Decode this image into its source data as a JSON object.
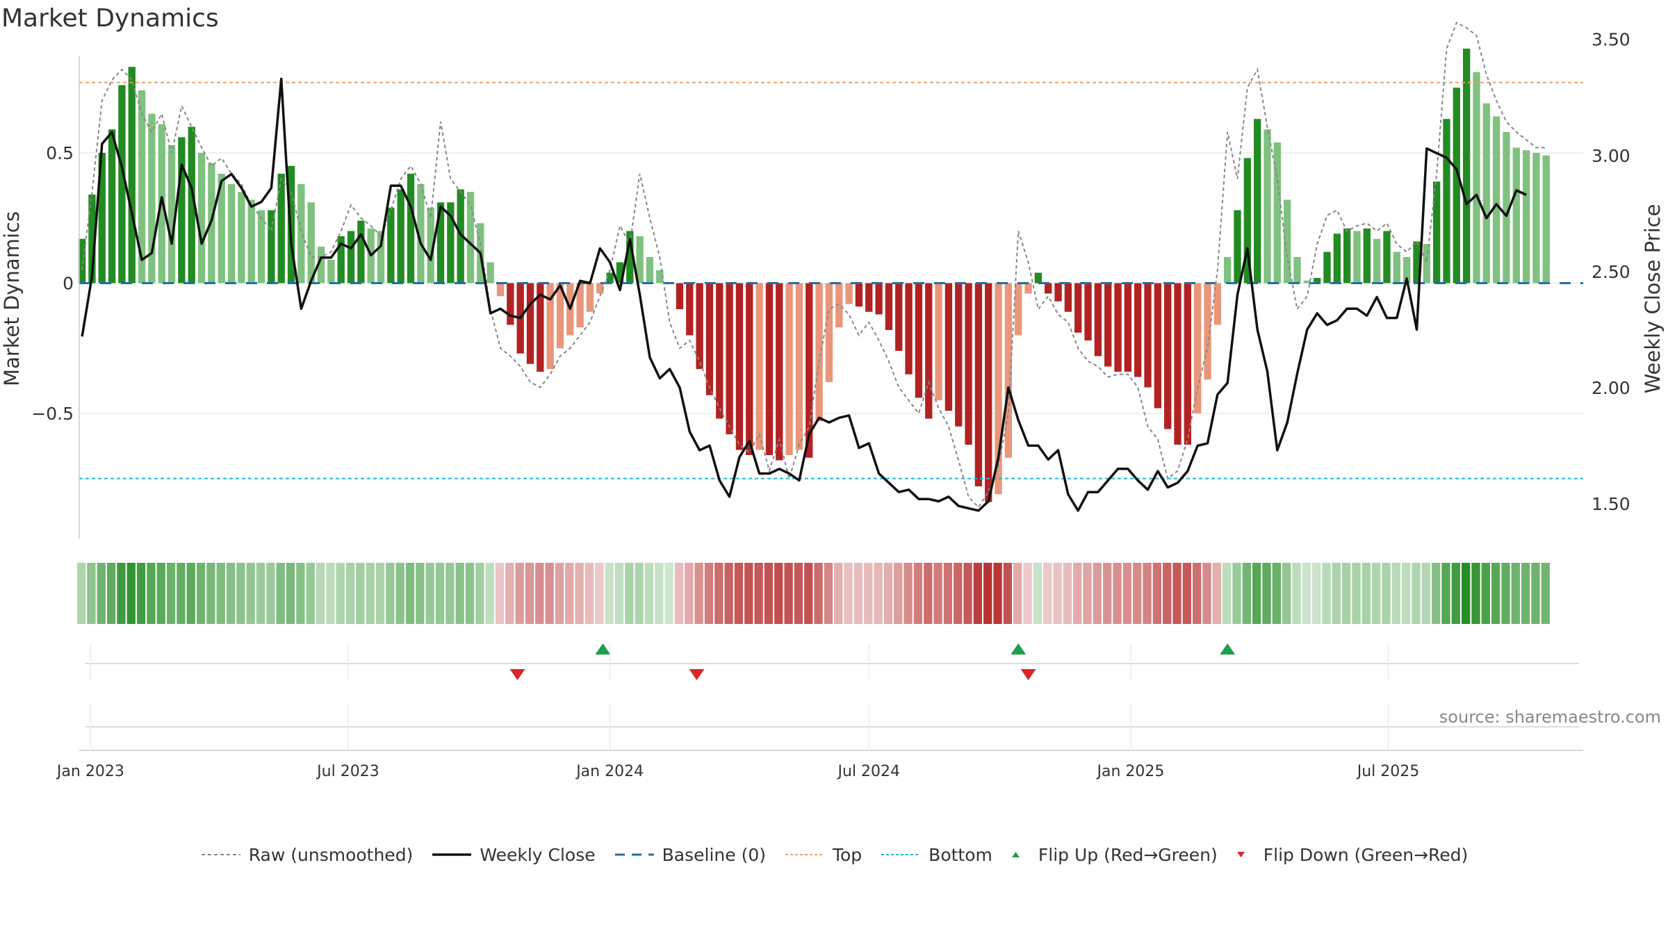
{
  "title": "Market Dynamics",
  "source": "source: sharemaestro.com",
  "chart_data": {
    "type": "bar",
    "title": "Market Dynamics",
    "ylabel_left": "Market Dynamics",
    "ylabel_right": "Weekly Close Price",
    "left_ticks": [
      {
        "v": 0.5,
        "label": "0.5"
      },
      {
        "v": 0,
        "label": "0"
      },
      {
        "v": -0.5,
        "label": "−0.5"
      }
    ],
    "right_ticks": [
      {
        "v": 3.5,
        "label": "3.50"
      },
      {
        "v": 3.0,
        "label": "3.00"
      },
      {
        "v": 2.5,
        "label": "2.50"
      },
      {
        "v": 2.0,
        "label": "2.00"
      },
      {
        "v": 1.5,
        "label": "1.50"
      }
    ],
    "x_ticks": [
      {
        "date": "2023-01-01",
        "label": "Jan 2023"
      },
      {
        "date": "2023-07-01",
        "label": "Jul 2023"
      },
      {
        "date": "2024-01-01",
        "label": "Jan 2024"
      },
      {
        "date": "2024-07-01",
        "label": "Jul 2024"
      },
      {
        "date": "2025-01-01",
        "label": "Jan 2025"
      },
      {
        "date": "2025-07-01",
        "label": "Jul 2025"
      }
    ],
    "x_range": [
      "2022-12-24",
      "2025-11-15"
    ],
    "left_range": [
      -0.98,
      0.98
    ],
    "right_range": [
      1.35,
      3.55
    ],
    "top_level": 0.77,
    "bottom_level": -0.75,
    "baseline": 0,
    "first_week": "2022-12-26",
    "week_days": 7,
    "dynamics": [
      0.17,
      0.34,
      0.5,
      0.59,
      0.76,
      0.83,
      0.74,
      0.65,
      0.61,
      0.53,
      0.56,
      0.6,
      0.5,
      0.46,
      0.42,
      0.38,
      0.35,
      0.32,
      0.28,
      0.28,
      0.42,
      0.45,
      0.38,
      0.31,
      0.14,
      0.09,
      0.18,
      0.2,
      0.24,
      0.21,
      0.2,
      0.29,
      0.36,
      0.42,
      0.38,
      0.29,
      0.31,
      0.31,
      0.36,
      0.35,
      0.23,
      0.08,
      -0.05,
      -0.16,
      -0.27,
      -0.31,
      -0.34,
      -0.33,
      -0.25,
      -0.2,
      -0.17,
      -0.11,
      -0.04,
      0.04,
      0.08,
      0.2,
      0.18,
      0.1,
      0.05,
      0.0,
      -0.1,
      -0.2,
      -0.33,
      -0.43,
      -0.52,
      -0.58,
      -0.64,
      -0.66,
      -0.64,
      -0.66,
      -0.68,
      -0.66,
      -0.64,
      -0.67,
      -0.53,
      -0.38,
      -0.17,
      -0.08,
      -0.09,
      -0.11,
      -0.12,
      -0.18,
      -0.26,
      -0.35,
      -0.44,
      -0.52,
      -0.45,
      -0.49,
      -0.55,
      -0.62,
      -0.78,
      -0.84,
      -0.81,
      -0.67,
      -0.2,
      -0.04,
      0.04,
      -0.04,
      -0.07,
      -0.11,
      -0.19,
      -0.22,
      -0.28,
      -0.32,
      -0.34,
      -0.34,
      -0.36,
      -0.4,
      -0.48,
      -0.56,
      -0.62,
      -0.62,
      -0.5,
      -0.37,
      -0.16,
      0.1,
      0.28,
      0.48,
      0.63,
      0.59,
      0.54,
      0.32,
      0.1,
      0.01,
      0.02,
      0.12,
      0.19,
      0.21,
      0.2,
      0.21,
      0.17,
      0.2,
      0.12,
      0.1,
      0.16,
      0.15,
      0.39,
      0.63,
      0.75,
      0.9,
      0.81,
      0.69,
      0.64,
      0.58,
      0.52,
      0.51,
      0.5,
      0.49
    ],
    "raw": [
      0.05,
      0.35,
      0.7,
      0.78,
      0.82,
      0.78,
      0.65,
      0.58,
      0.65,
      0.5,
      0.68,
      0.6,
      0.52,
      0.45,
      0.48,
      0.42,
      0.38,
      0.3,
      0.25,
      0.2,
      0.4,
      0.35,
      0.2,
      0.1,
      0.1,
      0.12,
      0.2,
      0.3,
      0.25,
      0.22,
      0.18,
      0.28,
      0.4,
      0.45,
      0.38,
      0.25,
      0.62,
      0.4,
      0.35,
      0.3,
      0.15,
      -0.1,
      -0.25,
      -0.28,
      -0.32,
      -0.38,
      -0.4,
      -0.35,
      -0.28,
      -0.25,
      -0.2,
      -0.15,
      -0.05,
      0.05,
      0.22,
      0.15,
      0.42,
      0.25,
      0.1,
      -0.15,
      -0.25,
      -0.22,
      -0.3,
      -0.4,
      -0.48,
      -0.55,
      -0.62,
      -0.65,
      -0.58,
      -0.72,
      -0.6,
      -0.75,
      -0.62,
      -0.55,
      -0.3,
      -0.1,
      -0.08,
      -0.12,
      -0.2,
      -0.15,
      -0.22,
      -0.3,
      -0.4,
      -0.45,
      -0.5,
      -0.38,
      -0.48,
      -0.55,
      -0.68,
      -0.82,
      -0.86,
      -0.8,
      -0.7,
      -0.5,
      0.2,
      0.08,
      -0.1,
      -0.05,
      -0.12,
      -0.15,
      -0.25,
      -0.3,
      -0.32,
      -0.36,
      -0.35,
      -0.35,
      -0.4,
      -0.55,
      -0.6,
      -0.75,
      -0.72,
      -0.6,
      -0.4,
      -0.25,
      0.05,
      0.58,
      0.4,
      0.75,
      0.82,
      0.6,
      0.4,
      0.1,
      -0.1,
      -0.05,
      0.15,
      0.26,
      0.28,
      0.2,
      0.22,
      0.23,
      0.2,
      0.23,
      0.15,
      0.12,
      0.16,
      0.08,
      0.42,
      0.9,
      1.0,
      0.98,
      0.95,
      0.8,
      0.7,
      0.62,
      0.58,
      0.55,
      0.52,
      0.52
    ],
    "weekly_close": [
      2.22,
      2.48,
      3.05,
      3.1,
      2.95,
      2.75,
      2.55,
      2.58,
      2.82,
      2.62,
      2.96,
      2.86,
      2.62,
      2.72,
      2.89,
      2.92,
      2.86,
      2.78,
      2.8,
      2.86,
      3.33,
      2.62,
      2.34,
      2.46,
      2.56,
      2.56,
      2.62,
      2.6,
      2.66,
      2.57,
      2.61,
      2.87,
      2.87,
      2.78,
      2.62,
      2.55,
      2.78,
      2.74,
      2.66,
      2.62,
      2.58,
      2.32,
      2.34,
      2.31,
      2.3,
      2.36,
      2.4,
      2.38,
      2.44,
      2.34,
      2.46,
      2.45,
      2.6,
      2.54,
      2.42,
      2.64,
      2.4,
      2.13,
      2.04,
      2.08,
      2.0,
      1.81,
      1.73,
      1.75,
      1.6,
      1.53,
      1.7,
      1.77,
      1.63,
      1.63,
      1.65,
      1.63,
      1.6,
      1.8,
      1.87,
      1.85,
      1.87,
      1.88,
      1.74,
      1.76,
      1.63,
      1.59,
      1.55,
      1.56,
      1.52,
      1.52,
      1.51,
      1.53,
      1.49,
      1.48,
      1.47,
      1.51,
      1.7,
      2.0,
      1.86,
      1.75,
      1.75,
      1.69,
      1.73,
      1.54,
      1.47,
      1.55,
      1.55,
      1.6,
      1.65,
      1.65,
      1.6,
      1.56,
      1.64,
      1.57,
      1.59,
      1.64,
      1.75,
      1.76,
      1.97,
      2.02,
      2.4,
      2.6,
      2.25,
      2.07,
      1.73,
      1.85,
      2.06,
      2.25,
      2.32,
      2.27,
      2.29,
      2.34,
      2.34,
      2.31,
      2.39,
      2.3,
      2.3,
      2.47,
      2.25,
      3.03,
      3.01,
      2.99,
      2.94,
      2.79,
      2.83,
      2.73,
      2.79,
      2.74,
      2.85,
      2.83
    ],
    "flips_up": [
      "2023-12-27",
      "2024-10-14",
      "2025-03-10"
    ],
    "flips_down": [
      "2023-10-28",
      "2024-03-02",
      "2024-10-21"
    ],
    "series": [
      {
        "name": "Raw (unsmoothed)"
      },
      {
        "name": "Weekly Close"
      },
      {
        "name": "Baseline (0)"
      },
      {
        "name": "Top"
      },
      {
        "name": "Bottom"
      },
      {
        "name": "Flip Up (Red→Green)"
      },
      {
        "name": "Flip Down (Green→Red)"
      }
    ],
    "legend_position": "bottom",
    "grid": true
  },
  "colors": {
    "green_strong": "#228b22",
    "green_light": "#7fc17f",
    "red_strong": "#b22222",
    "red_light": "#e9967a",
    "weekly_close": "#111111",
    "raw": "#888888",
    "baseline": "#1f6fa5",
    "top": "#e8a06a",
    "bottom": "#22b8cf",
    "flip_up": "#1e9e4a",
    "flip_down": "#d62828",
    "grid": "#ececec"
  }
}
